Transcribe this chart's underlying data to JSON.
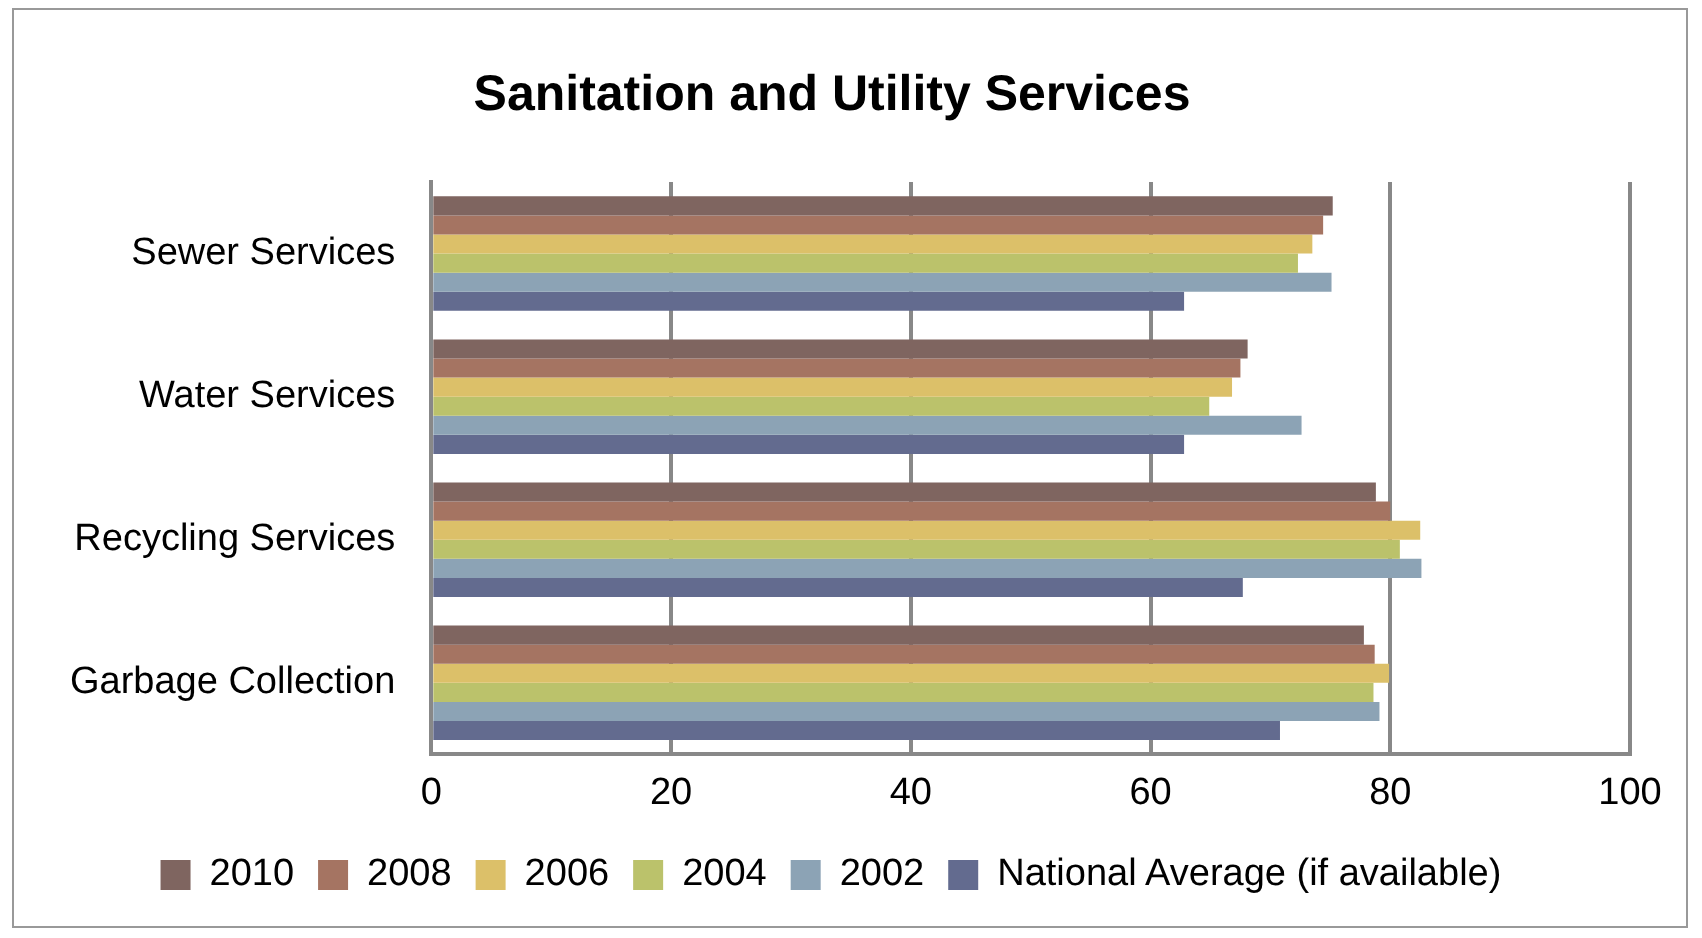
{
  "chart_data": {
    "type": "bar",
    "orientation": "horizontal",
    "title": "Sanitation and Utility Services",
    "categories": [
      "Sewer Services",
      "Water Services",
      "Recycling Services",
      "Garbage Collection"
    ],
    "series": [
      {
        "name": "2010",
        "color": "#7f6560",
        "values": [
          75.2,
          68.1,
          78.8,
          77.8
        ]
      },
      {
        "name": "2008",
        "color": "#a57462",
        "values": [
          74.4,
          67.5,
          80.0,
          78.7
        ]
      },
      {
        "name": "2006",
        "color": "#dcc069",
        "values": [
          73.5,
          66.8,
          82.5,
          79.9
        ]
      },
      {
        "name": "2004",
        "color": "#bbc26b",
        "values": [
          72.3,
          64.9,
          80.8,
          78.6
        ]
      },
      {
        "name": "2002",
        "color": "#8ca3b5",
        "values": [
          75.1,
          72.6,
          82.6,
          79.1
        ]
      },
      {
        "name": "National Average (if available)",
        "color": "#636b8f",
        "values": [
          62.8,
          62.8,
          67.7,
          70.8
        ]
      }
    ],
    "xlim": [
      0,
      100
    ],
    "xticks": [
      0,
      20,
      40,
      60,
      80,
      100
    ],
    "grid": "x",
    "legend": "bottom"
  }
}
